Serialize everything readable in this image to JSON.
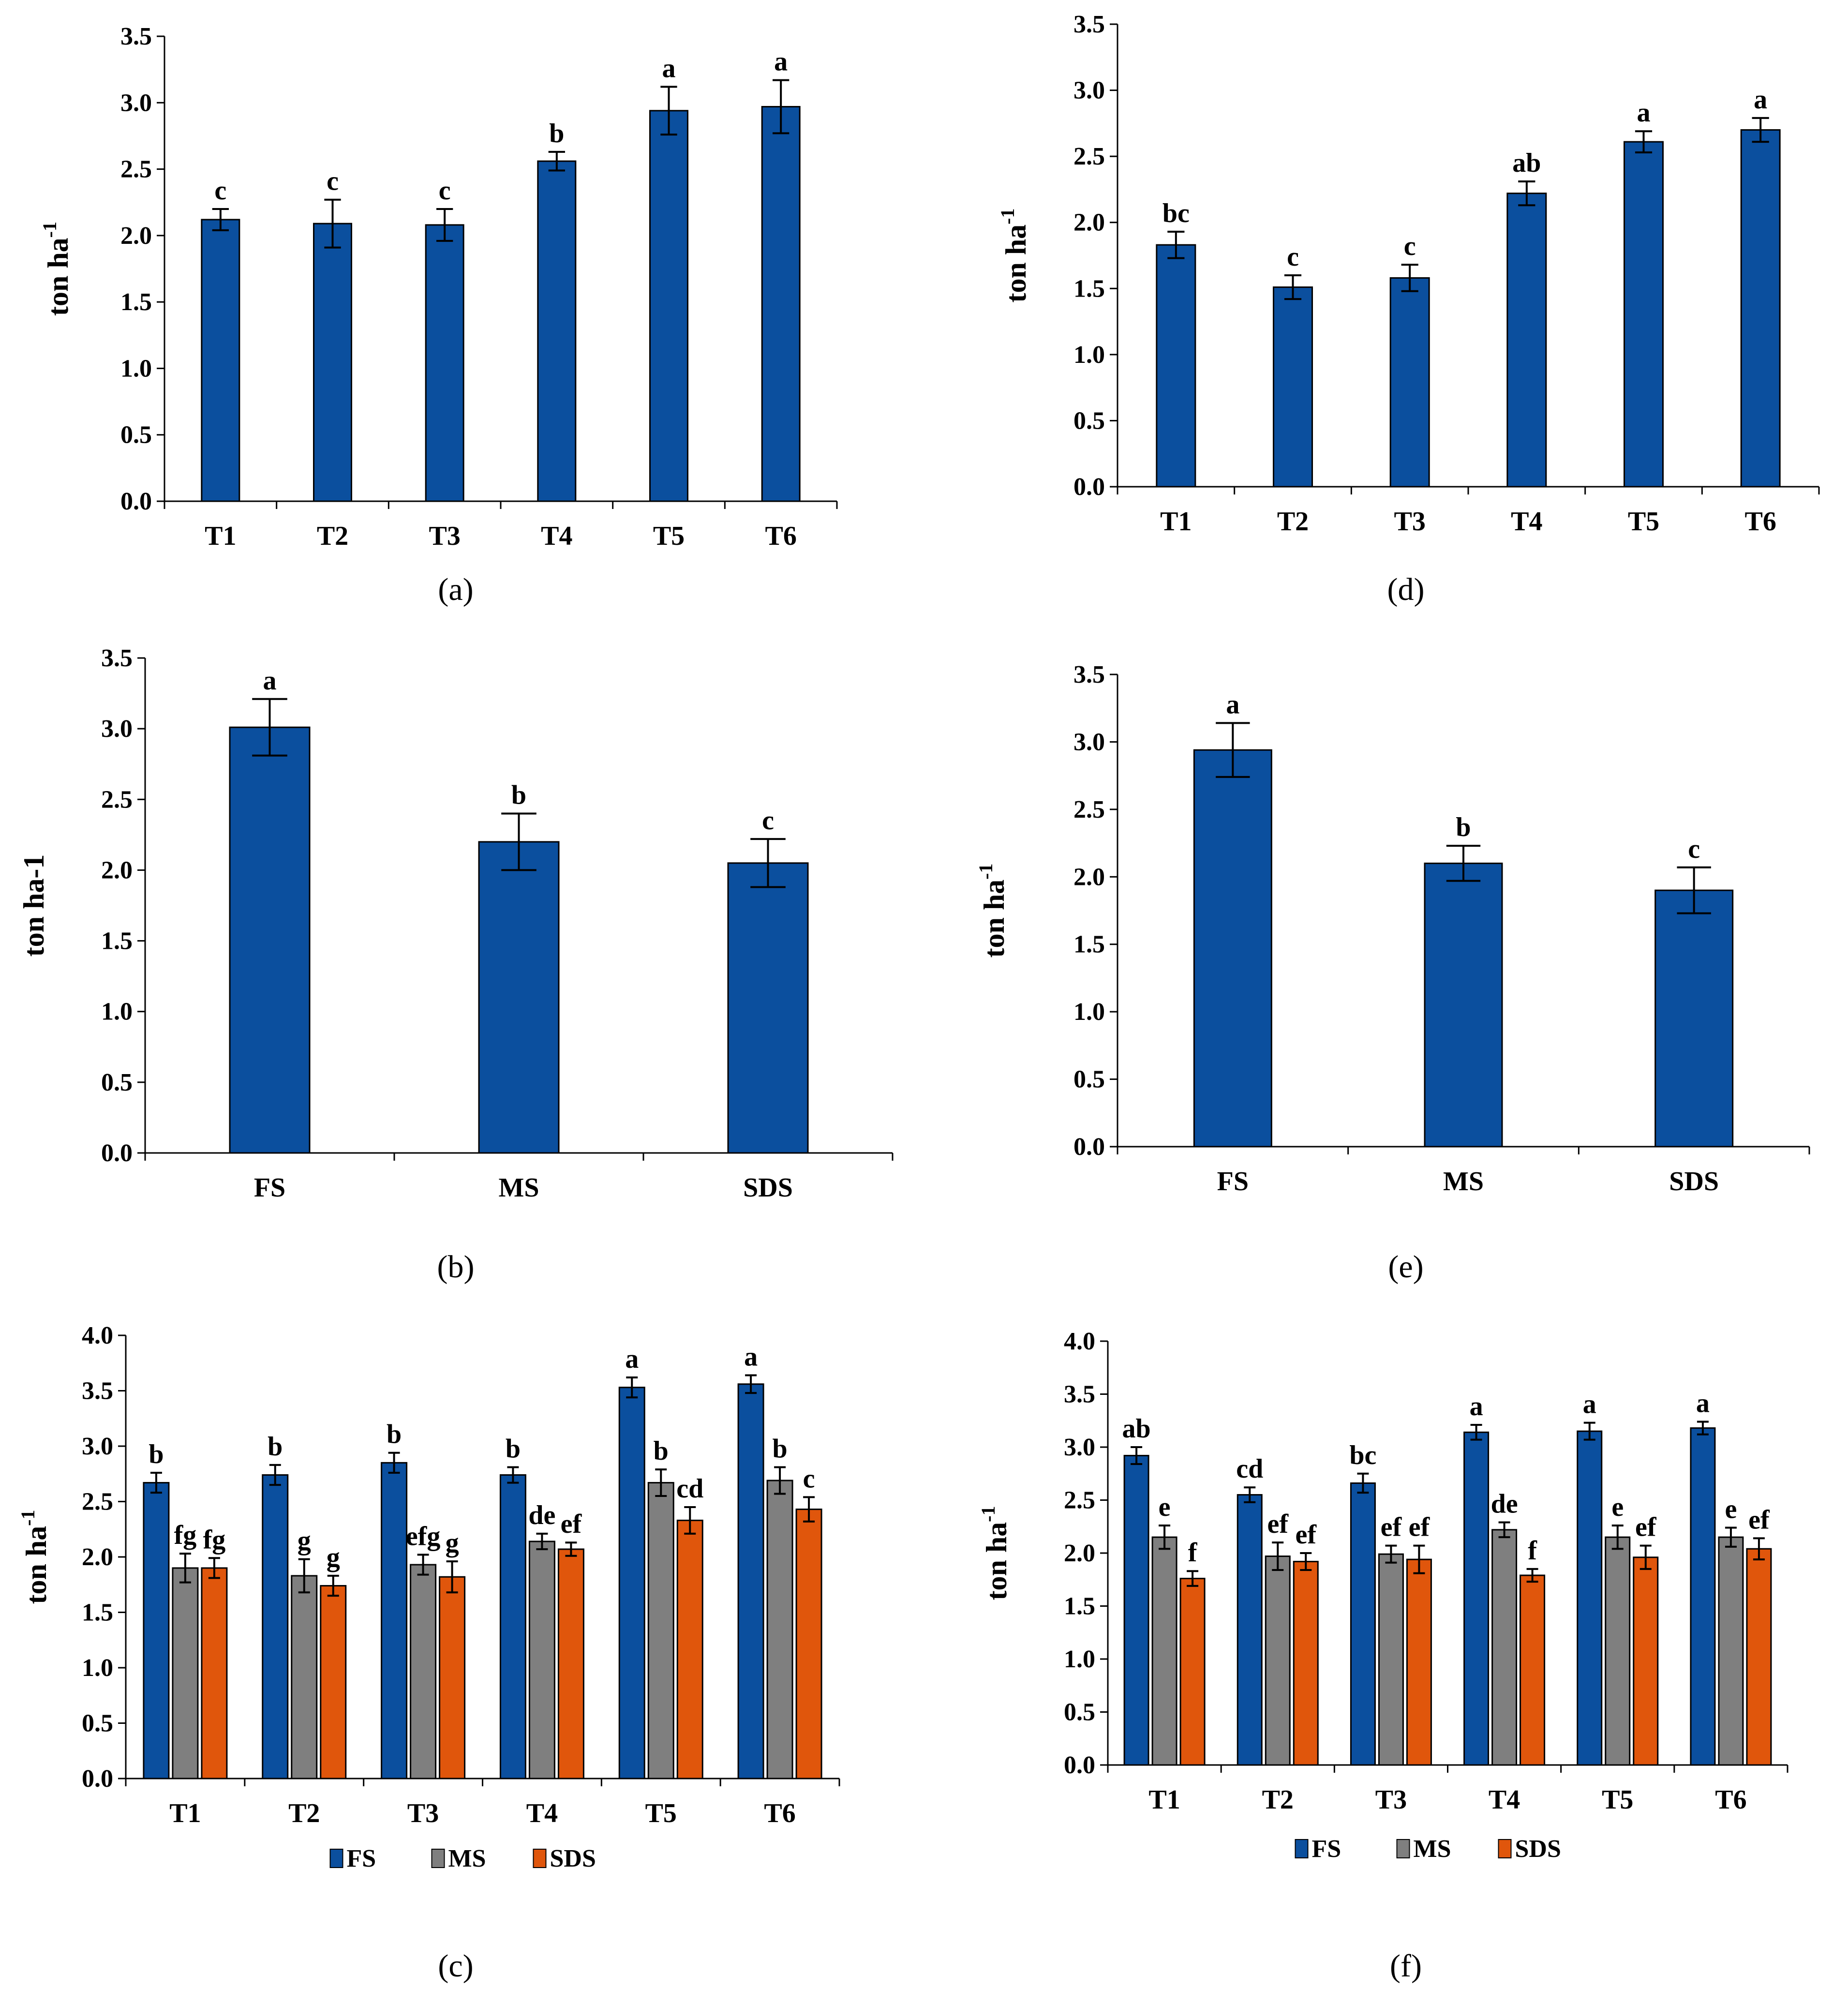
{
  "colors": {
    "FS": "#0b4f9e",
    "MS": "#7f7f7f",
    "SDS": "#e0560c",
    "bar_border": "#000000"
  },
  "chart_data": [
    {
      "id": "a",
      "type": "bar",
      "caption_prefix": "(",
      "caption_letter": "a",
      "caption_suffix": ")",
      "ylabel_main": "ton ha",
      "ylabel_sup": "-1",
      "ylim": [
        0,
        3.5
      ],
      "yticks": [
        "0.0",
        "0.5",
        "1.0",
        "1.5",
        "2.0",
        "2.5",
        "3.0",
        "3.5"
      ],
      "categories": [
        "T1",
        "T2",
        "T3",
        "T4",
        "T5",
        "T6"
      ],
      "series": [
        {
          "key": "FS",
          "values": [
            2.12,
            2.09,
            2.08,
            2.56,
            2.94,
            2.97
          ],
          "errors": [
            0.08,
            0.18,
            0.12,
            0.07,
            0.18,
            0.2
          ],
          "labels": [
            "c",
            "c",
            "c",
            "b",
            "a",
            "a"
          ]
        }
      ]
    },
    {
      "id": "d",
      "type": "bar",
      "caption_prefix": "(",
      "caption_letter": "d",
      "caption_suffix": ")",
      "ylabel_main": "ton ha",
      "ylabel_sup": "-1",
      "ylim": [
        0,
        3.5
      ],
      "yticks": [
        "0.0",
        "0.5",
        "1.0",
        "1.5",
        "2.0",
        "2.5",
        "3.0",
        "3.5"
      ],
      "categories": [
        "T1",
        "T2",
        "T3",
        "T4",
        "T5",
        "T6"
      ],
      "series": [
        {
          "key": "FS",
          "values": [
            1.83,
            1.51,
            1.58,
            2.22,
            2.61,
            2.7
          ],
          "errors": [
            0.1,
            0.09,
            0.1,
            0.09,
            0.08,
            0.09
          ],
          "labels": [
            "bc",
            "c",
            "c",
            "ab",
            "a",
            "a"
          ]
        }
      ]
    },
    {
      "id": "b",
      "type": "bar",
      "caption_prefix": "(",
      "caption_letter": "b",
      "caption_suffix": ")",
      "ylabel_main": "ton ha-1",
      "ylabel_sup": "",
      "ylim": [
        0,
        3.5
      ],
      "yticks": [
        "0.0",
        "0.5",
        "1.0",
        "1.5",
        "2.0",
        "2.5",
        "3.0",
        "3.5"
      ],
      "categories": [
        "FS",
        "MS",
        "SDS"
      ],
      "series": [
        {
          "key": "FS",
          "values": [
            3.01,
            2.2,
            2.05
          ],
          "errors": [
            0.2,
            0.2,
            0.17
          ],
          "labels": [
            "a",
            "b",
            "c"
          ]
        }
      ]
    },
    {
      "id": "e",
      "type": "bar",
      "caption_prefix": "(",
      "caption_letter": "e",
      "caption_suffix": ")",
      "ylabel_main": "ton ha",
      "ylabel_sup": "-1",
      "ylim": [
        0,
        3.5
      ],
      "yticks": [
        "0.0",
        "0.5",
        "1.0",
        "1.5",
        "2.0",
        "2.5",
        "3.0",
        "3.5"
      ],
      "categories": [
        "FS",
        "MS",
        "SDS"
      ],
      "series": [
        {
          "key": "FS",
          "values": [
            2.94,
            2.1,
            1.9
          ],
          "errors": [
            0.2,
            0.13,
            0.17
          ],
          "labels": [
            "a",
            "b",
            "c"
          ]
        }
      ]
    },
    {
      "id": "c",
      "type": "bar",
      "caption_prefix": "(",
      "caption_letter": "c",
      "caption_suffix": ")",
      "ylabel_main": "ton ha",
      "ylabel_sup": "-1",
      "ylim": [
        0,
        4.0
      ],
      "yticks": [
        "0.0",
        "0.5",
        "1.0",
        "1.5",
        "2.0",
        "2.5",
        "3.0",
        "3.5",
        "4.0"
      ],
      "categories": [
        "T1",
        "T2",
        "T3",
        "T4",
        "T5",
        "T6"
      ],
      "legend": [
        "FS",
        "MS",
        "SDS"
      ],
      "series": [
        {
          "key": "FS",
          "values": [
            2.67,
            2.74,
            2.85,
            2.74,
            3.53,
            3.56
          ],
          "errors": [
            0.09,
            0.09,
            0.09,
            0.07,
            0.09,
            0.08
          ],
          "labels": [
            "b",
            "b",
            "b",
            "b",
            "a",
            "a"
          ]
        },
        {
          "key": "MS",
          "values": [
            1.9,
            1.83,
            1.93,
            2.14,
            2.67,
            2.69
          ],
          "errors": [
            0.13,
            0.15,
            0.09,
            0.07,
            0.12,
            0.12
          ],
          "labels": [
            "fg",
            "g",
            "efg",
            "de",
            "b",
            "b"
          ]
        },
        {
          "key": "SDS",
          "values": [
            1.9,
            1.74,
            1.82,
            2.07,
            2.33,
            2.43
          ],
          "errors": [
            0.09,
            0.09,
            0.14,
            0.06,
            0.12,
            0.11
          ],
          "labels": [
            "fg",
            "g",
            "g",
            "ef",
            "cd",
            "c"
          ]
        }
      ]
    },
    {
      "id": "f",
      "type": "bar",
      "caption_prefix": "(",
      "caption_letter": "f",
      "caption_suffix": ")",
      "ylabel_main": "ton ha",
      "ylabel_sup": "-1",
      "ylim": [
        0,
        4.0
      ],
      "yticks": [
        "0.0",
        "0.5",
        "1.0",
        "1.5",
        "2.0",
        "2.5",
        "3.0",
        "3.5",
        "4.0"
      ],
      "categories": [
        "T1",
        "T2",
        "T3",
        "T4",
        "T5",
        "T6"
      ],
      "legend": [
        "FS",
        "MS",
        "SDS"
      ],
      "series": [
        {
          "key": "FS",
          "values": [
            2.92,
            2.55,
            2.66,
            3.14,
            3.15,
            3.18
          ],
          "errors": [
            0.08,
            0.07,
            0.09,
            0.07,
            0.08,
            0.06
          ],
          "labels": [
            "ab",
            "cd",
            "bc",
            "a",
            "a",
            "a"
          ]
        },
        {
          "key": "MS",
          "values": [
            2.15,
            1.97,
            1.99,
            2.22,
            2.15,
            2.15
          ],
          "errors": [
            0.11,
            0.13,
            0.08,
            0.07,
            0.11,
            0.09
          ],
          "labels": [
            "e",
            "ef",
            "ef",
            "de",
            "e",
            "e"
          ]
        },
        {
          "key": "SDS",
          "values": [
            1.76,
            1.92,
            1.94,
            1.79,
            1.96,
            2.04
          ],
          "errors": [
            0.07,
            0.08,
            0.13,
            0.06,
            0.11,
            0.1
          ],
          "labels": [
            "f",
            "ef",
            "ef",
            "f",
            "ef",
            "ef"
          ]
        }
      ]
    }
  ]
}
